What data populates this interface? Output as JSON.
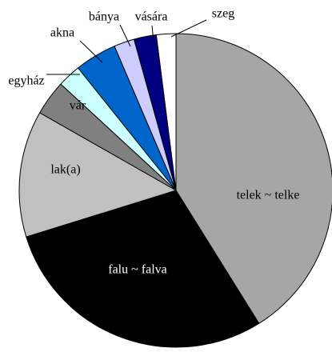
{
  "chart_data": {
    "type": "pie",
    "categories": [
      "telek ~ telke",
      "falu ~ falva",
      "lak(a)",
      "vár",
      "egyház",
      "akna",
      "bánya",
      "vására",
      "szeg"
    ],
    "values": [
      41,
      29,
      13,
      3.6,
      2.4,
      4.3,
      2.1,
      2.3,
      2
    ],
    "colors": [
      "#a6a6a6",
      "#000000",
      "#c0c0c0",
      "#808080",
      "#ccffff",
      "#0066cc",
      "#ccccff",
      "#000080",
      "#ffffff"
    ]
  }
}
